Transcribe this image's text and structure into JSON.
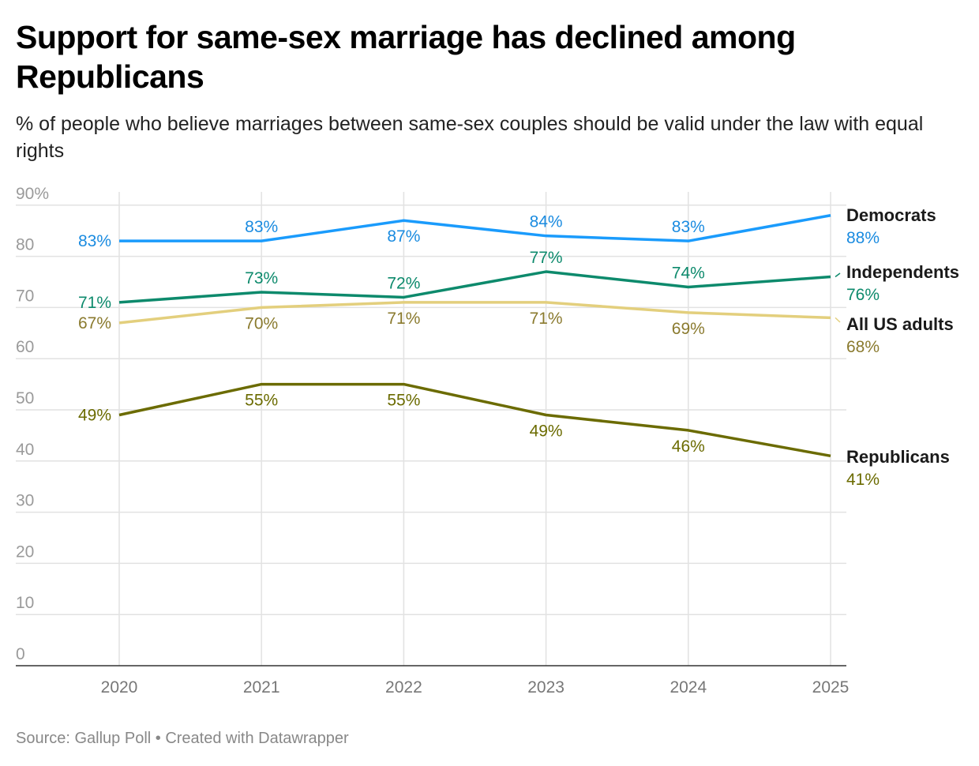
{
  "title": "Support for same-sex marriage has declined among Republicans",
  "subtitle": "% of people who believe marriages between same-sex couples should be valid under the law with equal rights",
  "source": "Source: Gallup Poll • Created with Datawrapper",
  "chart_data": {
    "type": "line",
    "x": [
      "2020",
      "2021",
      "2022",
      "2023",
      "2024",
      "2025"
    ],
    "ylim": [
      0,
      90
    ],
    "yticks": [
      "0",
      "10",
      "20",
      "30",
      "40",
      "50",
      "60",
      "70",
      "80",
      "90%"
    ],
    "grid": true,
    "legend": "direct labels at line ends (right)",
    "series": [
      {
        "name": "Democrats",
        "values": [
          83,
          83,
          87,
          84,
          83,
          88
        ],
        "labels": [
          "83%",
          "83%",
          "87%",
          "84%",
          "83%",
          "88%"
        ],
        "color": "#1a9bfc",
        "label_color": "#1a8be0"
      },
      {
        "name": "Independents",
        "values": [
          71,
          73,
          72,
          77,
          74,
          76
        ],
        "labels": [
          "71%",
          "73%",
          "72%",
          "77%",
          "74%",
          "76%"
        ],
        "color": "#0d8a6c",
        "label_color": "#0d8a6c"
      },
      {
        "name": "All US adults",
        "values": [
          67,
          70,
          71,
          71,
          69,
          68
        ],
        "labels": [
          "67%",
          "70%",
          "71%",
          "71%",
          "69%",
          "68%"
        ],
        "color": "#e3cf7d",
        "label_color": "#8a7a2e"
      },
      {
        "name": "Republicans",
        "values": [
          49,
          55,
          55,
          49,
          46,
          41
        ],
        "labels": [
          "49%",
          "55%",
          "55%",
          "49%",
          "46%",
          "41%"
        ],
        "color": "#6b6b00",
        "label_color": "#6b6b00"
      }
    ]
  }
}
